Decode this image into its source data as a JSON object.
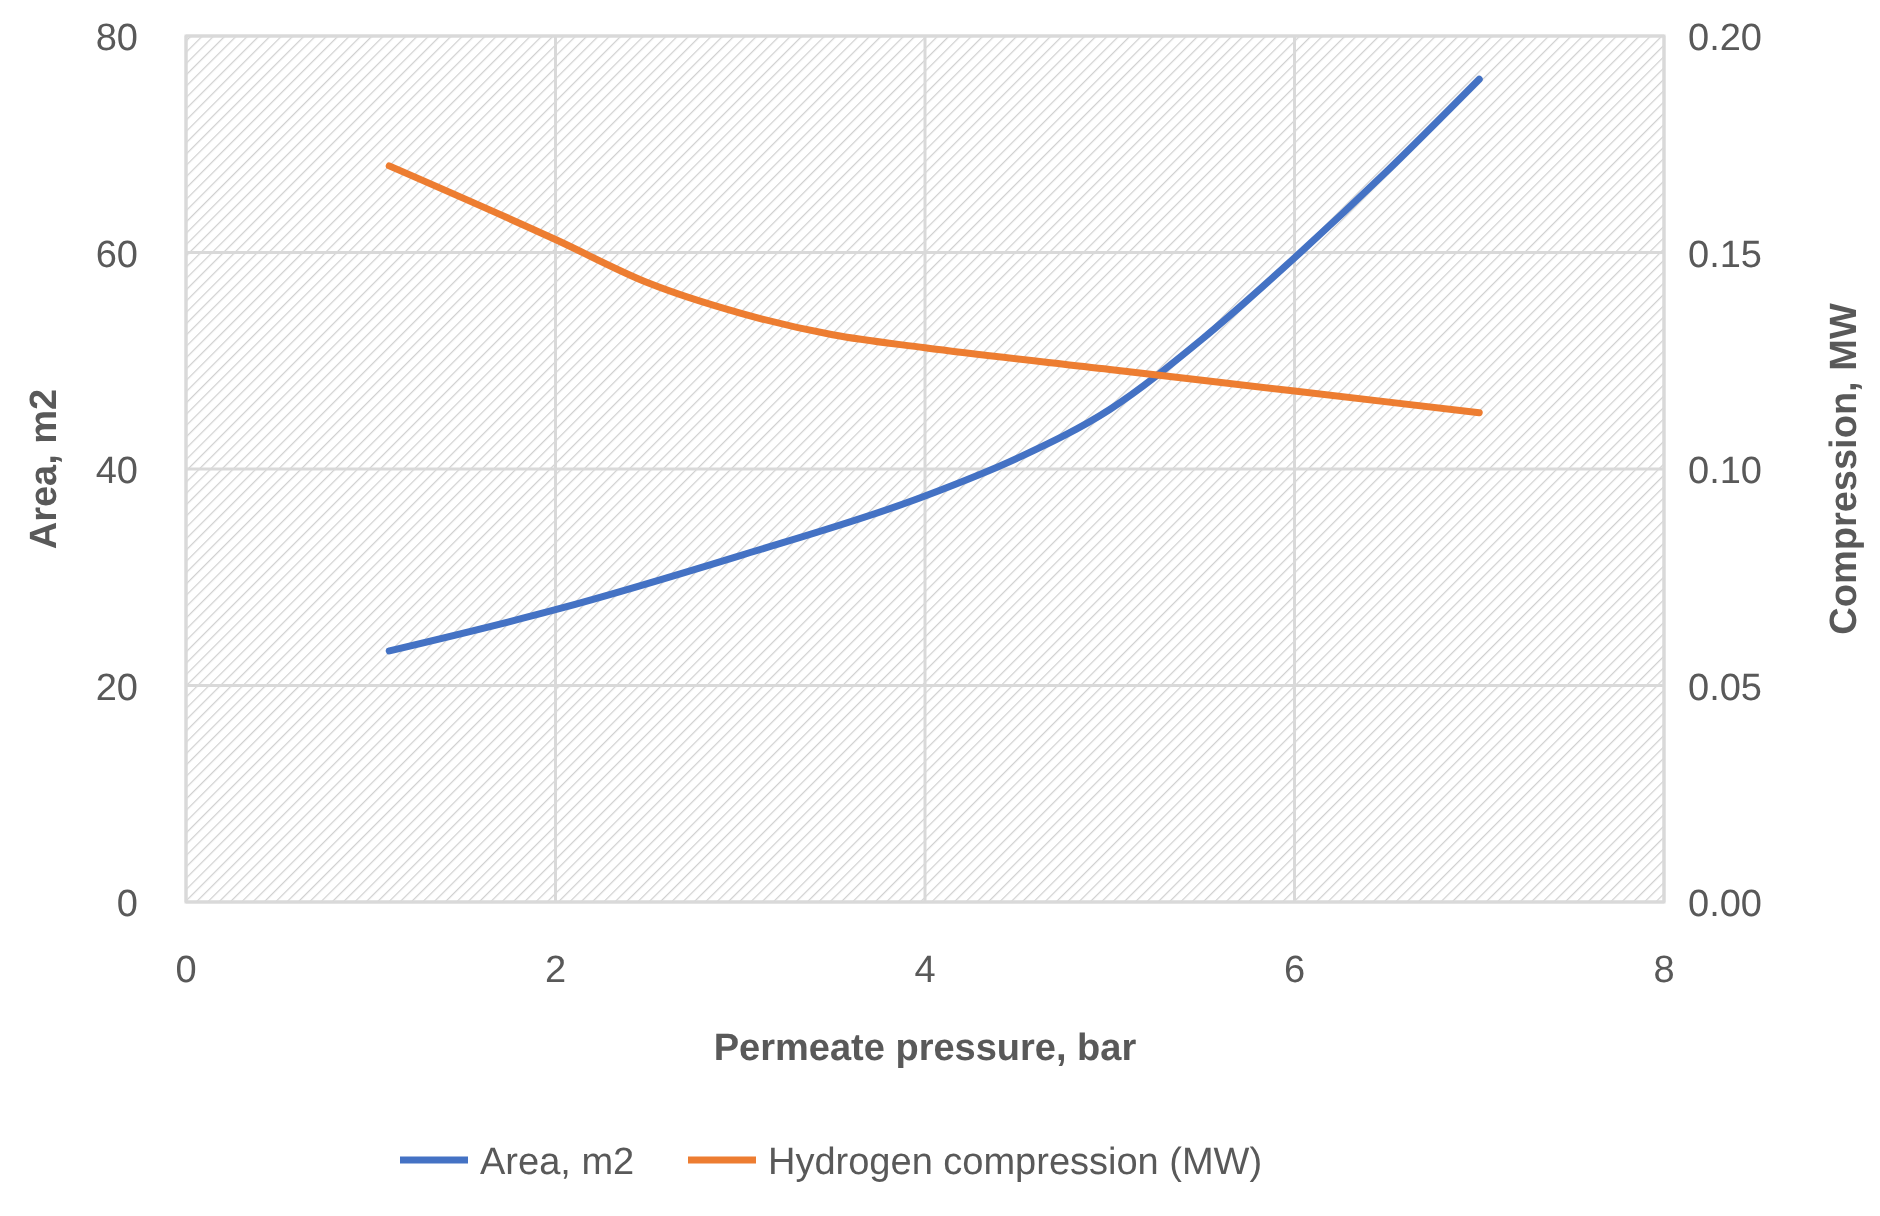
{
  "chart_data": {
    "type": "line",
    "xlabel": "Permeate pressure, bar",
    "ylabel": "Area, m2",
    "y2label": "Compression, MW",
    "xlim": [
      0,
      8
    ],
    "xticks": [
      0,
      2,
      4,
      6,
      8
    ],
    "ylim": [
      0,
      80
    ],
    "yticks": [
      0,
      20,
      40,
      60,
      80
    ],
    "y2lim": [
      0,
      0.2
    ],
    "y2ticks": [
      {
        "value": 0,
        "label": "0.00"
      },
      {
        "value": 0.05,
        "label": "0.05"
      },
      {
        "value": 0.1,
        "label": "0.10"
      },
      {
        "value": 0.15,
        "label": "0.15"
      },
      {
        "value": 0.2,
        "label": "0.20"
      }
    ],
    "grid": true,
    "legend": "bottom",
    "series": [
      {
        "name": "Area, m2",
        "color": "#4472c4",
        "x": [
          1.1,
          2,
          3,
          4,
          4.5,
          5,
          5.5,
          6,
          6.5,
          7
        ],
        "values": [
          23.2,
          27,
          32,
          37.5,
          41,
          45.5,
          52,
          59.5,
          67.5,
          76
        ]
      },
      {
        "name": "Hydrogen compression (MW)",
        "color": "#ed7d31",
        "axis": "y2",
        "x": [
          1.1,
          2,
          2.5,
          3,
          3.5,
          4,
          5,
          6,
          7
        ],
        "values": [
          0.17,
          0.153,
          0.143,
          0.136,
          0.131,
          0.128,
          0.123,
          0.118,
          0.113
        ]
      }
    ]
  }
}
